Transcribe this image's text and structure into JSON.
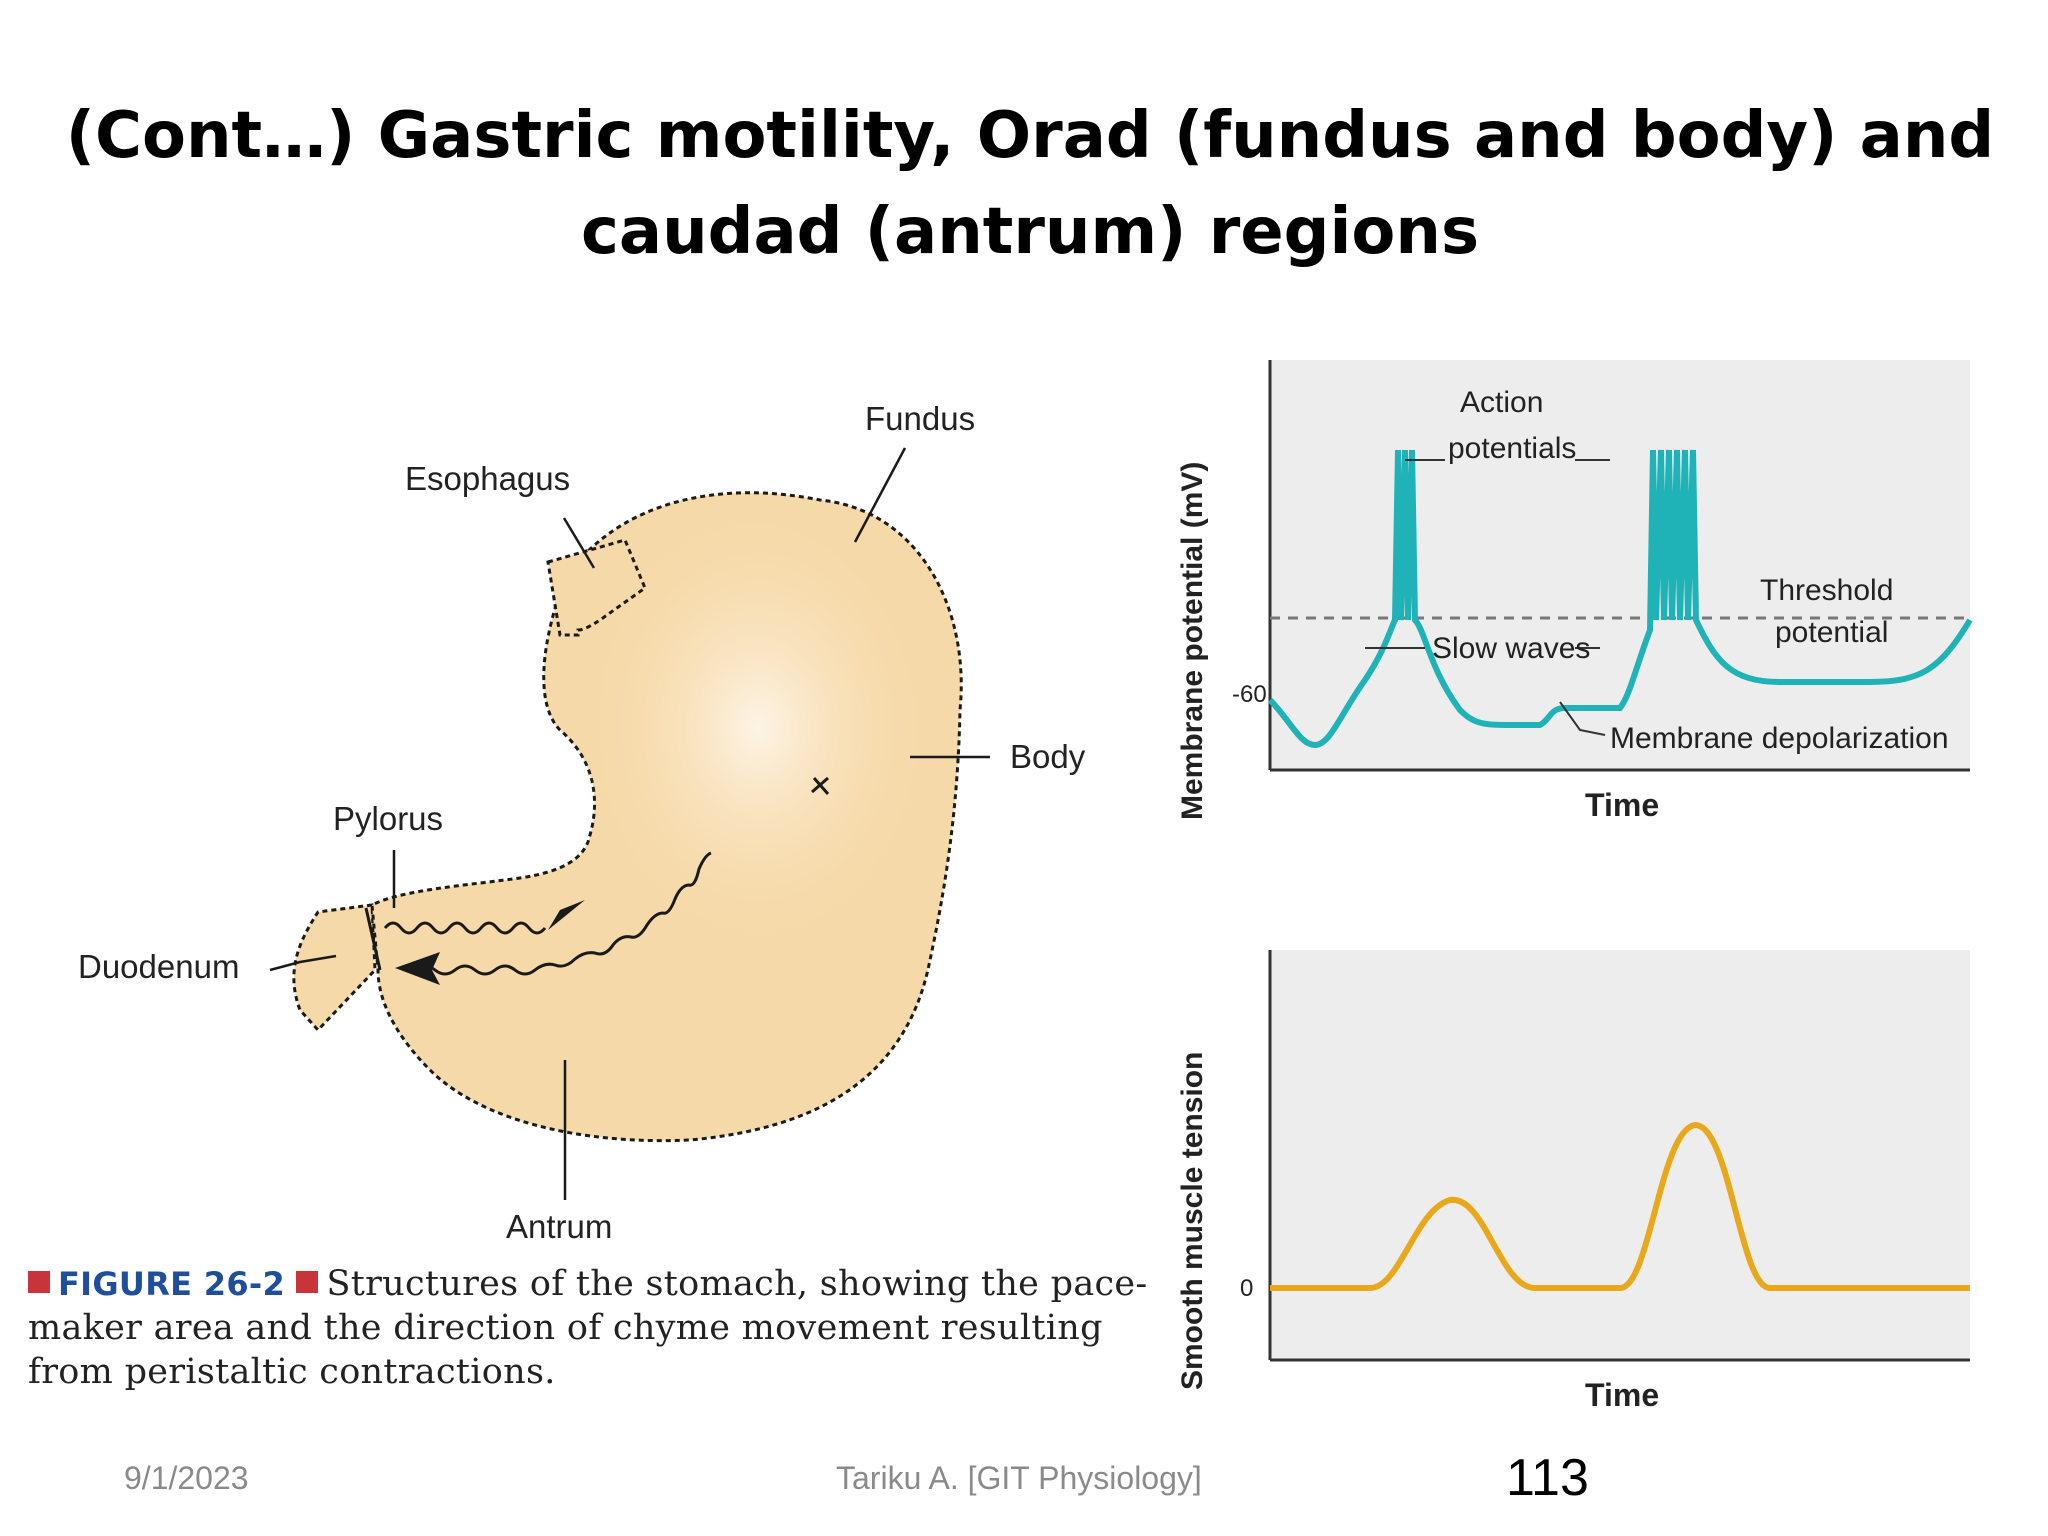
{
  "slide": {
    "title_line1": "(Cont…) Gastric motility, Orad (fundus and body) and",
    "title_line2": "caudad (antrum) regions"
  },
  "stomach_diagram": {
    "labels": {
      "fundus": "Fundus",
      "esophagus": "Esophagus",
      "body": "Body",
      "pylorus": "Pylorus",
      "duodenum": "Duodenum",
      "antrum": "Antrum"
    },
    "caption": {
      "figure": "FIGURE 26-2",
      "text": "Structures of the stomach, showing the pace-maker area and the direction of chyme movement resulting from peristaltic contractions."
    },
    "colors": {
      "stomach_fill": "#f6d9a8",
      "outline": "#1a1a1a"
    }
  },
  "chart_data": [
    {
      "type": "line",
      "ylabel": "Membrane potential (mV)",
      "xlabel": "Time",
      "yticks": [
        "-60"
      ],
      "annotations": {
        "action_potentials": [
          "Action",
          "potentials"
        ],
        "slow_waves": "Slow waves",
        "threshold": [
          "Threshold",
          "potential"
        ],
        "depolarization": "Membrane depolarization"
      },
      "series_color": "#1fb3b8",
      "threshold_line": "dashed"
    },
    {
      "type": "line",
      "ylabel": "Smooth muscle tension",
      "xlabel": "Time",
      "yticks": [
        "0"
      ],
      "series_color": "#e8a81a"
    }
  ],
  "footer": {
    "date": "9/1/2023",
    "author": "Tariku A. [GIT Physiology]",
    "page": "113"
  }
}
